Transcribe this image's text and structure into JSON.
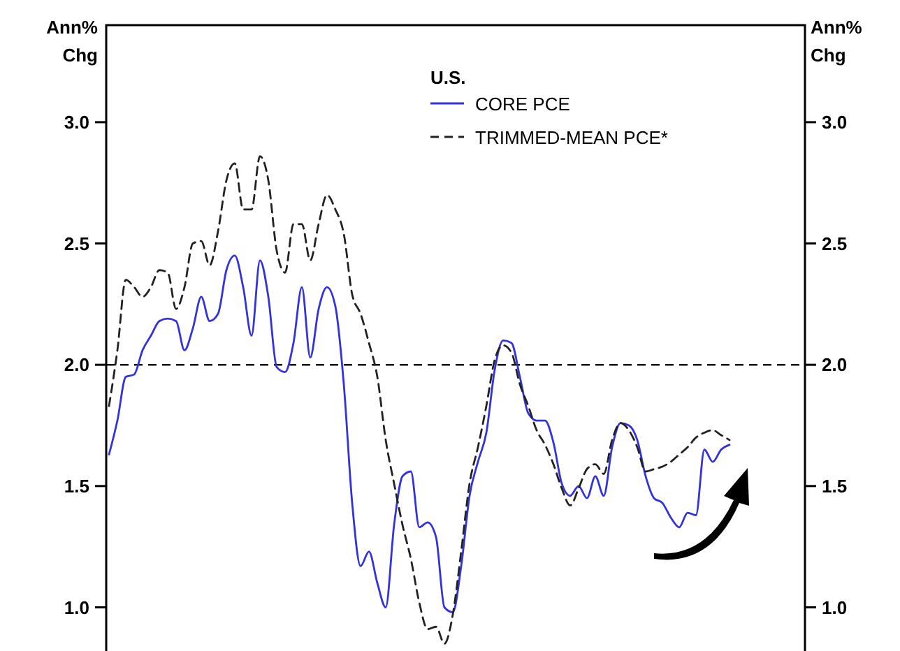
{
  "chart_data": {
    "type": "line",
    "ylabel": "Ann% Chg",
    "y2label": "Ann% Chg",
    "legend_title": "U.S.",
    "legend": "top",
    "categories": [
      null,
      null,
      null,
      null,
      null,
      null,
      null,
      null,
      null,
      null,
      null,
      null,
      null,
      null,
      null,
      null,
      null,
      null,
      null,
      null,
      null,
      null,
      null,
      null,
      null,
      null,
      null,
      null,
      null,
      null,
      null,
      null,
      null,
      null,
      null,
      null,
      null,
      null,
      null,
      null,
      null,
      null,
      null,
      null,
      null,
      null,
      null,
      null,
      null,
      null,
      null,
      null,
      null,
      null,
      null,
      null,
      null,
      null,
      null,
      null,
      null,
      null,
      null,
      null,
      null,
      null,
      null,
      null,
      null,
      null,
      null,
      null,
      null,
      null,
      null
    ],
    "ylim": [
      0.82,
      3.4
    ],
    "yticks": [
      {
        "value": 1,
        "label": "1.0"
      },
      {
        "value": 1.5,
        "label": "1.5"
      },
      {
        "value": 2,
        "label": "2.0"
      },
      {
        "value": 2.5,
        "label": "2.5"
      },
      {
        "value": 3,
        "label": "3.0"
      }
    ],
    "y2lim": [
      0.82,
      3.4
    ],
    "y2ticks": [
      {
        "value": 1,
        "label": "1.0"
      },
      {
        "value": 1.5,
        "label": "1.5"
      },
      {
        "value": 2,
        "label": "2.0"
      },
      {
        "value": 2.5,
        "label": "2.5"
      },
      {
        "value": 3,
        "label": "3.0"
      }
    ],
    "grid": false,
    "tick_labels": "y",
    "marker": "none",
    "ref_lines": [
      {
        "axis": "y",
        "value": 2,
        "color": "#000000",
        "line_style": "dashed"
      }
    ],
    "series": [
      {
        "name": "CORE PCE",
        "color": "#3333dd",
        "line_style": "solid",
        "values": [
          1.63,
          1.77,
          1.95,
          1.96,
          2.06,
          2.12,
          2.18,
          2.19,
          2.18,
          2.06,
          2.15,
          2.28,
          2.18,
          2.21,
          2.39,
          2.45,
          2.32,
          2.12,
          2.43,
          2.28,
          1.99,
          1.97,
          2.09,
          2.32,
          2.03,
          2.23,
          2.32,
          2.24,
          1.92,
          1.43,
          1.17,
          1.23,
          1.1,
          1.0,
          1.34,
          1.54,
          1.56,
          1.33,
          1.35,
          1.29,
          1.0,
          0.98,
          1.17,
          1.46,
          1.6,
          1.72,
          1.98,
          2.1,
          2.09,
          1.95,
          1.8,
          1.77,
          1.77,
          1.68,
          1.51,
          1.46,
          1.5,
          1.45,
          1.54,
          1.46,
          1.66,
          1.76,
          1.75,
          1.69,
          1.54,
          1.45,
          1.43,
          1.37,
          1.33,
          1.39,
          1.38,
          1.65,
          1.6,
          1.65,
          1.67
        ]
      },
      {
        "name": "TRIMMED-MEAN PCE*",
        "color": "#222222",
        "line_style": "dashed",
        "values": [
          1.83,
          2.06,
          2.35,
          2.32,
          2.28,
          2.32,
          2.39,
          2.38,
          2.23,
          2.32,
          2.5,
          2.51,
          2.41,
          2.55,
          2.76,
          2.83,
          2.64,
          2.64,
          2.86,
          2.76,
          2.47,
          2.38,
          2.58,
          2.58,
          2.43,
          2.58,
          2.7,
          2.64,
          2.54,
          2.29,
          2.21,
          2.09,
          1.95,
          1.69,
          1.51,
          1.34,
          1.2,
          1.02,
          0.91,
          0.92,
          0.85,
          0.97,
          1.23,
          1.51,
          1.66,
          1.83,
          2.02,
          2.08,
          2.05,
          1.92,
          1.83,
          1.73,
          1.67,
          1.59,
          1.49,
          1.42,
          1.49,
          1.57,
          1.59,
          1.55,
          1.69,
          1.76,
          1.73,
          1.66,
          1.56,
          1.57,
          1.58,
          1.6,
          1.63,
          1.66,
          1.7,
          1.72,
          1.73,
          1.71,
          1.69
        ]
      }
    ]
  }
}
